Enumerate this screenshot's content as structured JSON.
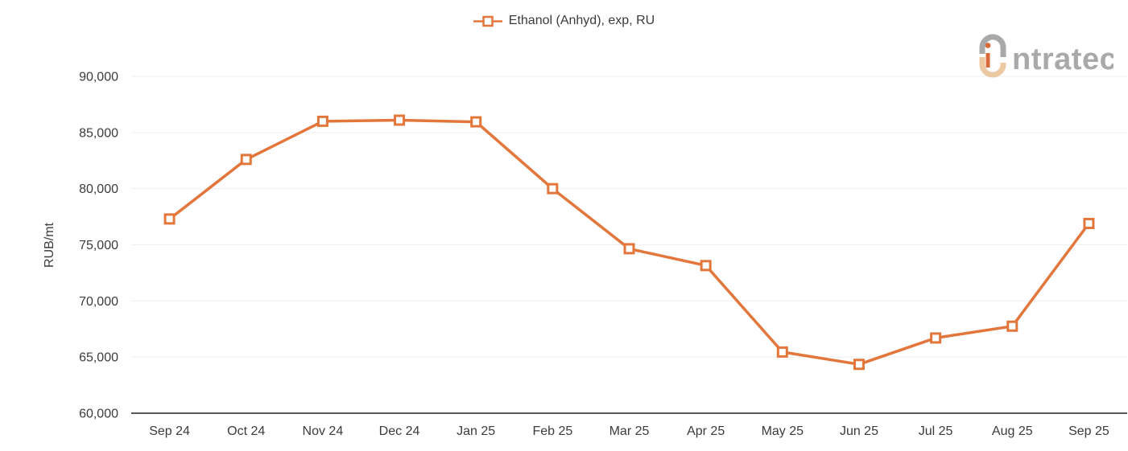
{
  "legend": {
    "series_label": "Ethanol (Anhyd), exp, RU"
  },
  "logo": {
    "brand_suffix": "ntratec"
  },
  "chart_data": {
    "type": "line",
    "title": "",
    "xlabel": "",
    "ylabel": "RUB/mt",
    "categories": [
      "Sep 24",
      "Oct 24",
      "Nov 24",
      "Dec 24",
      "Jan 25",
      "Feb 25",
      "Mar 25",
      "Apr 25",
      "May 25",
      "Jun 25",
      "Jul 25",
      "Aug 25",
      "Sep 25"
    ],
    "series": [
      {
        "name": "Ethanol (Anhyd), exp, RU",
        "values": [
          77300,
          82600,
          86000,
          86100,
          85950,
          80000,
          74650,
          73150,
          65450,
          64350,
          66700,
          67750,
          76900
        ]
      }
    ],
    "ylim": [
      60000,
      90000
    ],
    "ytick_step": 5000,
    "grid": "horizontal",
    "legend_position": "top-center",
    "marker": "open-square",
    "colors": {
      "line": "#e2763b",
      "marker_fill": "#ffffff",
      "gridline": "#efefef",
      "axis_line": "#595959",
      "tick_text": "#3b3b3b",
      "logo_gray": "#a9a9a9",
      "logo_tan": "#ecc9a3",
      "logo_orange": "#d96b3a"
    }
  }
}
